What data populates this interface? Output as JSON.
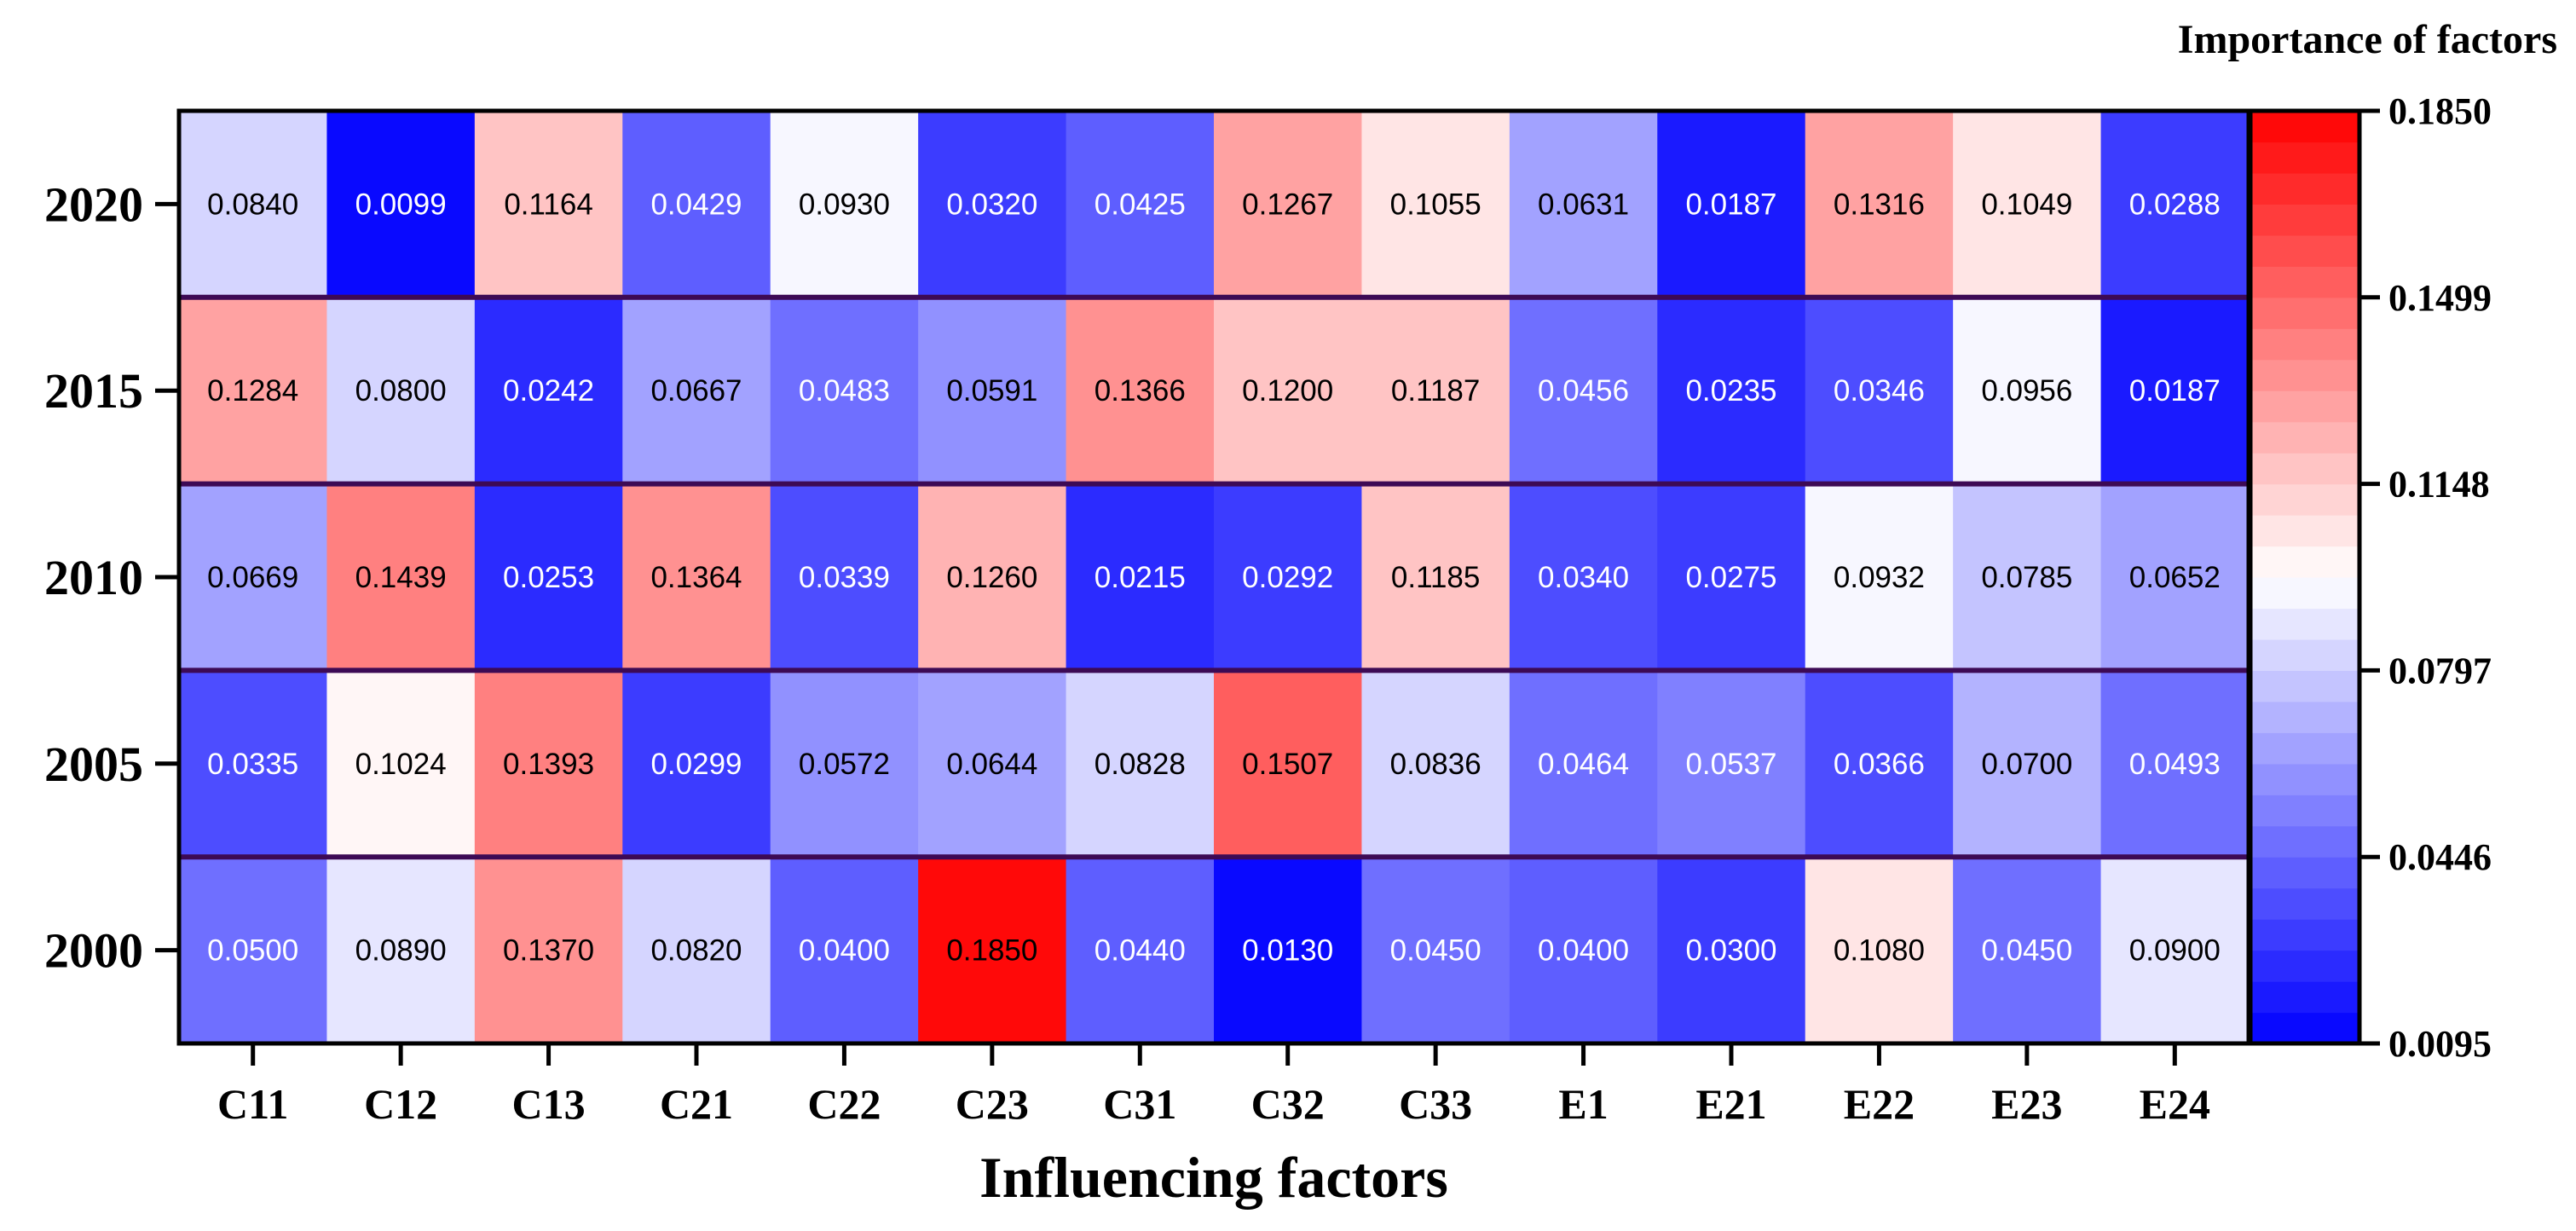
{
  "chart_data": {
    "type": "heatmap",
    "xlabel": "Influencing factors",
    "ylabel": "",
    "colorbar_title": "Importance of factors",
    "x": [
      "C11",
      "C12",
      "C13",
      "C21",
      "C22",
      "C23",
      "C31",
      "C32",
      "C33",
      "E1",
      "E21",
      "E22",
      "E23",
      "E24"
    ],
    "y": [
      "2020",
      "2015",
      "2010",
      "2005",
      "2000"
    ],
    "values": [
      [
        0.084,
        0.0099,
        0.1164,
        0.0429,
        0.093,
        0.032,
        0.0425,
        0.1267,
        0.1055,
        0.0631,
        0.0187,
        0.1316,
        0.1049,
        0.0288
      ],
      [
        0.1284,
        0.08,
        0.0242,
        0.0667,
        0.0483,
        0.0591,
        0.1366,
        0.12,
        0.1187,
        0.0456,
        0.0235,
        0.0346,
        0.0956,
        0.0187
      ],
      [
        0.0669,
        0.1439,
        0.0253,
        0.1364,
        0.0339,
        0.126,
        0.0215,
        0.0292,
        0.1185,
        0.034,
        0.0275,
        0.0932,
        0.0785,
        0.0652
      ],
      [
        0.0335,
        0.1024,
        0.1393,
        0.0299,
        0.0572,
        0.0644,
        0.0828,
        0.1507,
        0.0836,
        0.0464,
        0.0537,
        0.0366,
        0.07,
        0.0493
      ],
      [
        0.05,
        0.089,
        0.137,
        0.082,
        0.04,
        0.185,
        0.044,
        0.013,
        0.045,
        0.04,
        0.03,
        0.108,
        0.045,
        0.09
      ]
    ],
    "cell_labels": [
      [
        "0.0840",
        "0.0099",
        "0.1164",
        "0.0429",
        "0.0930",
        "0.0320",
        "0.0425",
        "0.1267",
        "0.1055",
        "0.0631",
        "0.0187",
        "0.1316",
        "0.1049",
        "0.0288"
      ],
      [
        "0.1284",
        "0.0800",
        "0.0242",
        "0.0667",
        "0.0483",
        "0.0591",
        "0.1366",
        "0.1200",
        "0.1187",
        "0.0456",
        "0.0235",
        "0.0346",
        "0.0956",
        "0.0187"
      ],
      [
        "0.0669",
        "0.1439",
        "0.0253",
        "0.1364",
        "0.0339",
        "0.1260",
        "0.0215",
        "0.0292",
        "0.1185",
        "0.0340",
        "0.0275",
        "0.0932",
        "0.0785",
        "0.0652"
      ],
      [
        "0.0335",
        "0.1024",
        "0.1393",
        "0.0299",
        "0.0572",
        "0.0644",
        "0.0828",
        "0.1507",
        "0.0836",
        "0.0464",
        "0.0537",
        "0.0366",
        "0.0700",
        "0.0493"
      ],
      [
        "0.0500",
        "0.0890",
        "0.1370",
        "0.0820",
        "0.0400",
        "0.1850",
        "0.0440",
        "0.0130",
        "0.0450",
        "0.0400",
        "0.0300",
        "0.1080",
        "0.0450",
        "0.0900"
      ]
    ],
    "colorbar_range": [
      0.0095,
      0.185
    ],
    "colorbar_ticks": [
      "0.1850",
      "0.1499",
      "0.1148",
      "0.0797",
      "0.0446",
      "0.0095"
    ],
    "colorbar_tick_values": [
      0.185,
      0.1499,
      0.1148,
      0.0797,
      0.0446,
      0.0095
    ],
    "colorbar_levels": 30,
    "colormap": {
      "low": "#0000ff",
      "mid": "#ffffff",
      "high": "#ff0000"
    }
  }
}
